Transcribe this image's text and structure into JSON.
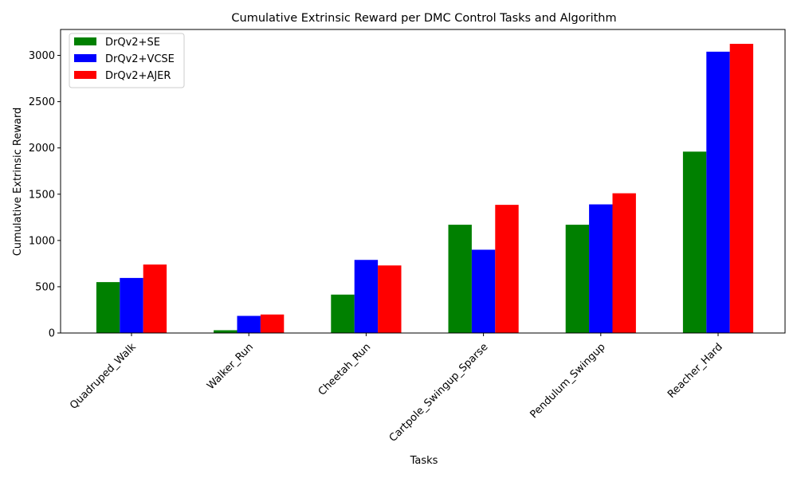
{
  "chart_data": {
    "type": "bar",
    "title": "Cumulative Extrinsic Reward per DMC Control Tasks and Algorithm",
    "xlabel": "Tasks",
    "ylabel": "Cumulative Extrinsic Reward",
    "ylim": [
      0,
      3280
    ],
    "yticks": [
      0,
      500,
      1000,
      1500,
      2000,
      2500,
      3000
    ],
    "grid": false,
    "legend_position": "top-left",
    "categories": [
      "Quadruped_Walk",
      "Walker_Run",
      "Cheetah_Run",
      "Cartpole_Swingup_Sparse",
      "Pendulum_Swingup",
      "Reacher_Hard"
    ],
    "series": [
      {
        "name": "DrQv2+SE",
        "color": "#008000",
        "values": [
          550,
          30,
          415,
          1170,
          1170,
          1960
        ]
      },
      {
        "name": "DrQv2+VCSE",
        "color": "#0000ff",
        "values": [
          595,
          185,
          790,
          900,
          1390,
          3040
        ]
      },
      {
        "name": "DrQv2+AJER",
        "color": "#ff0000",
        "values": [
          740,
          200,
          730,
          1385,
          1510,
          3125
        ]
      }
    ]
  }
}
